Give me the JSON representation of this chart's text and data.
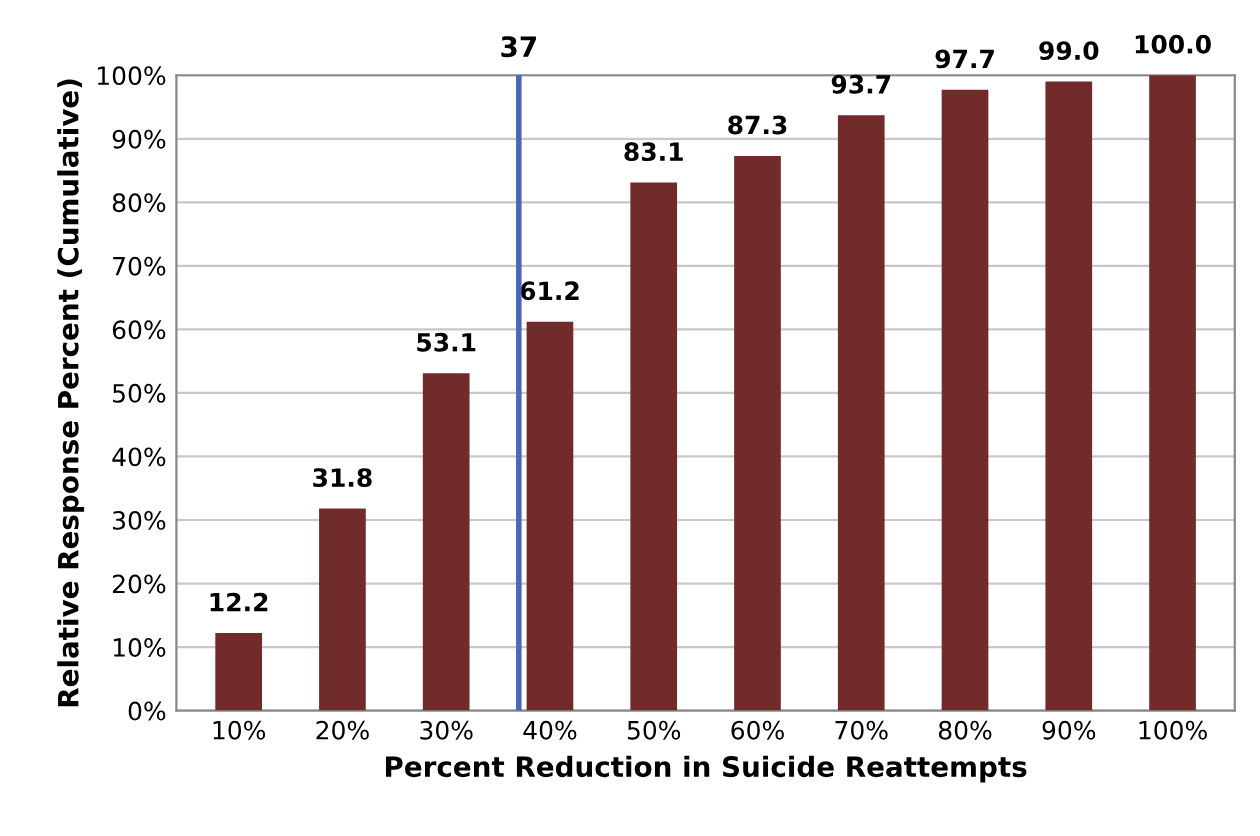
{
  "chart_data": {
    "type": "bar",
    "xlabel": "Percent Reduction in Suicide Reattempts",
    "ylabel": "Relative Response Percent (Cumulative)",
    "x": [
      10,
      20,
      30,
      40,
      50,
      60,
      70,
      80,
      90,
      100
    ],
    "values": [
      12.2,
      31.8,
      53.1,
      61.2,
      83.1,
      87.3,
      93.7,
      97.7,
      99.0,
      100.0
    ],
    "value_labels": [
      "12.2",
      "31.8",
      "53.1",
      "61.2",
      "83.1",
      "87.3",
      "93.7",
      "97.7",
      "99.0",
      "100.0"
    ],
    "color": "#722b2b",
    "xlim": [
      4,
      106
    ],
    "xticks": [
      {
        "value": 10,
        "label": "10%"
      },
      {
        "value": 20,
        "label": "20%"
      },
      {
        "value": 30,
        "label": "30%"
      },
      {
        "value": 40,
        "label": "40%"
      },
      {
        "value": 50,
        "label": "50%"
      },
      {
        "value": 60,
        "label": "60%"
      },
      {
        "value": 70,
        "label": "70%"
      },
      {
        "value": 80,
        "label": "80%"
      },
      {
        "value": 90,
        "label": "90%"
      },
      {
        "value": 100,
        "label": "100%"
      }
    ],
    "ylim": [
      0,
      100
    ],
    "yticks": [
      {
        "value": 0,
        "label": "0%"
      },
      {
        "value": 10,
        "label": "10%"
      },
      {
        "value": 20,
        "label": "20%"
      },
      {
        "value": 30,
        "label": "30%"
      },
      {
        "value": 40,
        "label": "40%"
      },
      {
        "value": 50,
        "label": "50%"
      },
      {
        "value": 60,
        "label": "60%"
      },
      {
        "value": 70,
        "label": "70%"
      },
      {
        "value": 80,
        "label": "80%"
      },
      {
        "value": 90,
        "label": "90%"
      },
      {
        "value": 100,
        "label": "100%"
      }
    ],
    "grid": "y",
    "ref_lines": [
      {
        "axis": "x",
        "value": 37,
        "label": "37",
        "color": "#4a67b8"
      }
    ]
  }
}
